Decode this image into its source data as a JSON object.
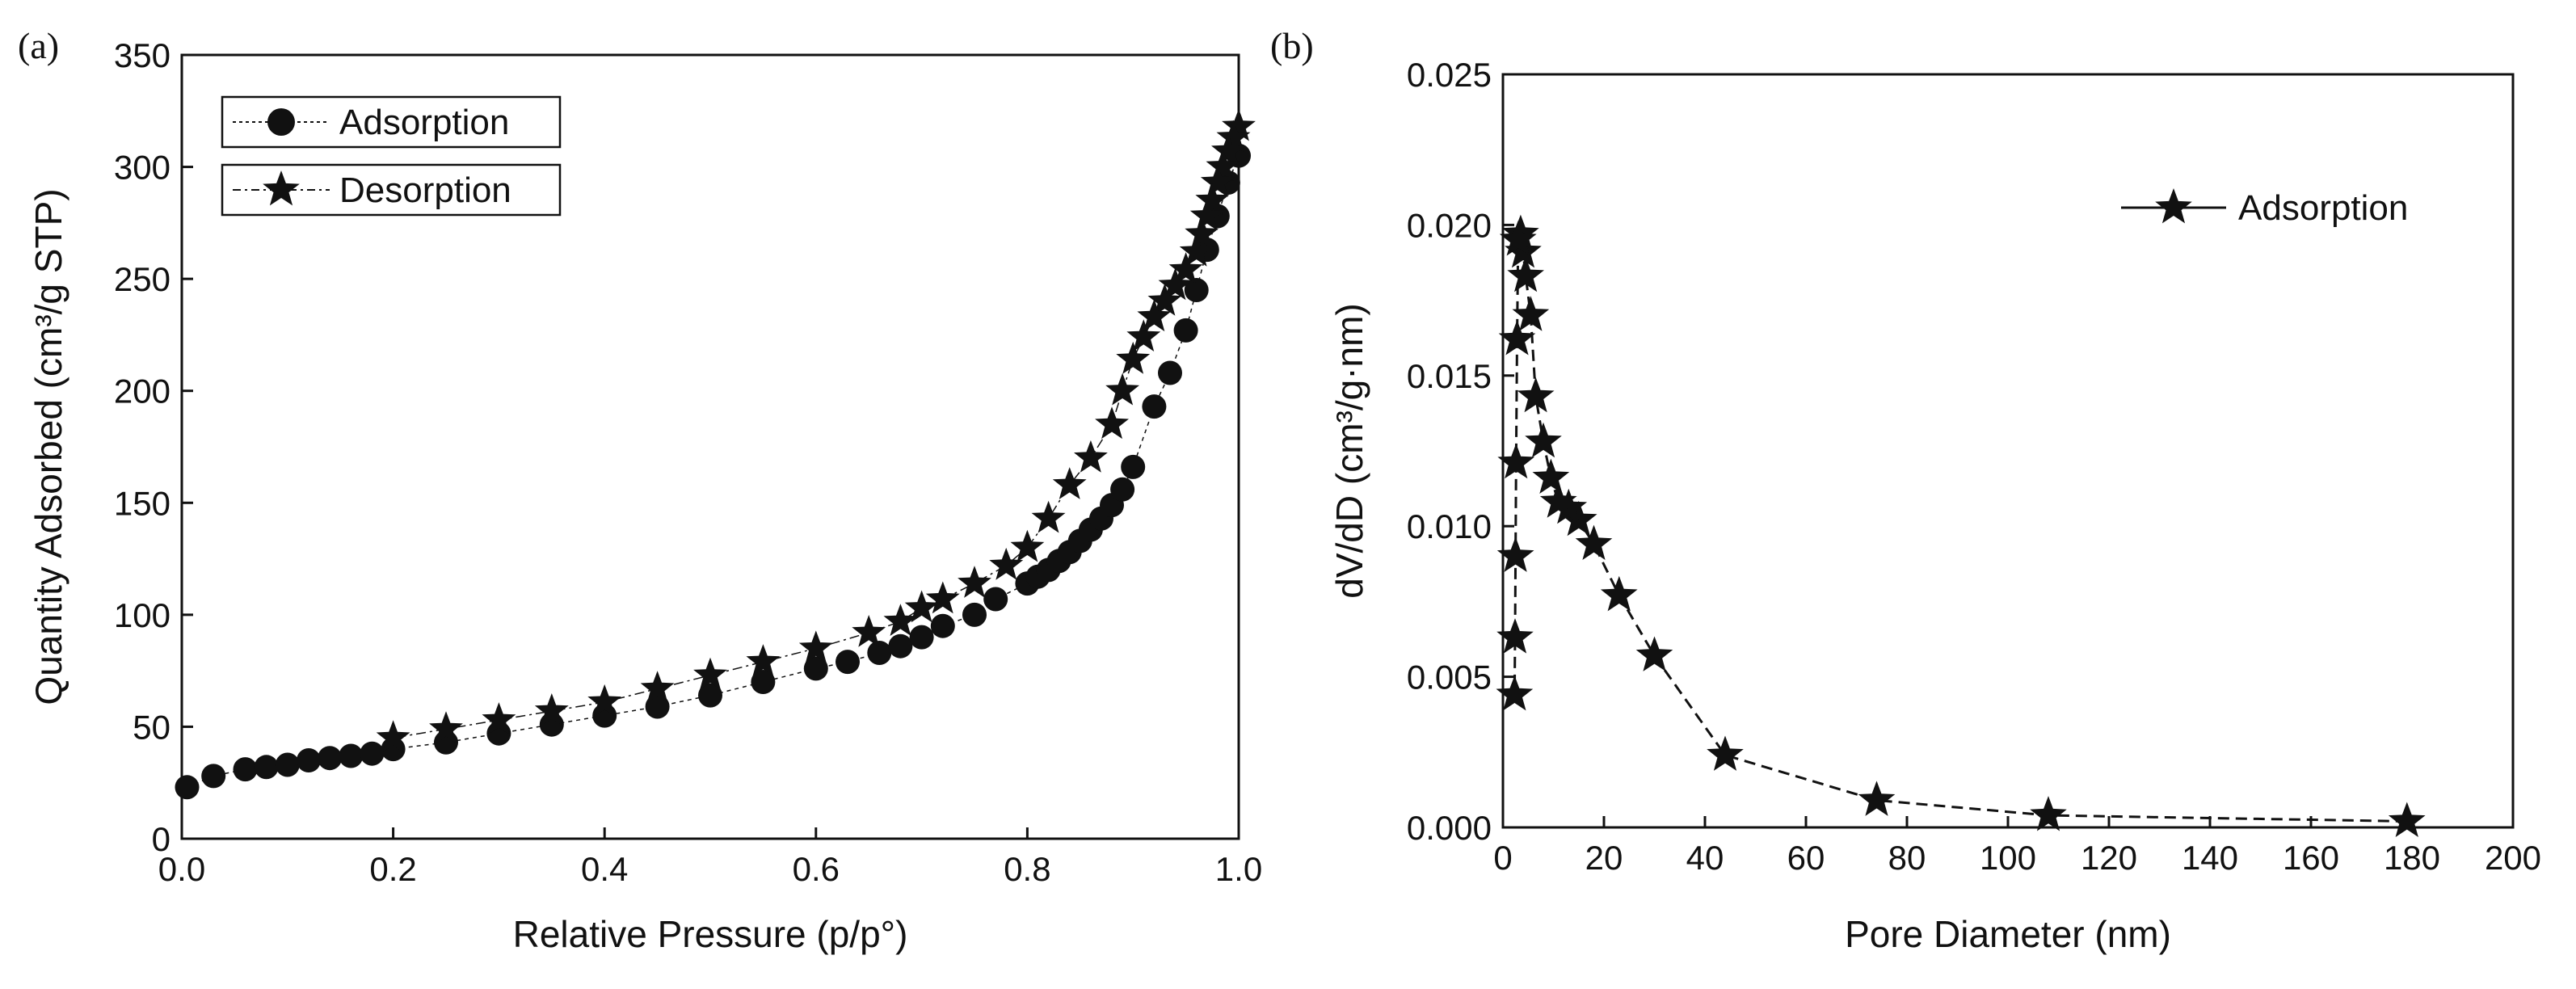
{
  "chart_data": [
    {
      "type": "scatter",
      "panel_label": "(a)",
      "xlabel": "Relative Pressure (p/p°)",
      "ylabel": "Quantity Adsorbed (cm³/g STP)",
      "xlim": [
        0.0,
        1.0
      ],
      "ylim": [
        0,
        350
      ],
      "xticks": [
        "0.0",
        "0.2",
        "0.4",
        "0.6",
        "0.8",
        "1.0"
      ],
      "yticks": [
        "0",
        "50",
        "100",
        "150",
        "200",
        "250",
        "300",
        "350"
      ],
      "legend_position": "top-left",
      "series": [
        {
          "name": "Adsorption",
          "marker": "circle",
          "x": [
            0.005,
            0.03,
            0.06,
            0.08,
            0.1,
            0.12,
            0.14,
            0.16,
            0.18,
            0.2,
            0.25,
            0.3,
            0.35,
            0.4,
            0.45,
            0.5,
            0.55,
            0.6,
            0.63,
            0.66,
            0.68,
            0.7,
            0.72,
            0.75,
            0.77,
            0.8,
            0.81,
            0.82,
            0.83,
            0.84,
            0.85,
            0.86,
            0.87,
            0.88,
            0.89,
            0.9,
            0.92,
            0.935,
            0.95,
            0.96,
            0.97,
            0.98,
            0.99,
            1.0
          ],
          "y": [
            23,
            28,
            31,
            32,
            33,
            35,
            36,
            37,
            38,
            40,
            43,
            47,
            51,
            55,
            59,
            64,
            70,
            76,
            79,
            83,
            86,
            90,
            95,
            100,
            107,
            114,
            117,
            120,
            124,
            128,
            133,
            138,
            143,
            149,
            156,
            166,
            193,
            208,
            227,
            245,
            263,
            278,
            293,
            305
          ]
        },
        {
          "name": "Desorption",
          "marker": "star",
          "x": [
            1.0,
            0.995,
            0.99,
            0.985,
            0.98,
            0.975,
            0.97,
            0.965,
            0.96,
            0.95,
            0.94,
            0.93,
            0.92,
            0.91,
            0.9,
            0.89,
            0.88,
            0.86,
            0.84,
            0.82,
            0.8,
            0.78,
            0.75,
            0.72,
            0.7,
            0.68,
            0.65,
            0.6,
            0.55,
            0.5,
            0.45,
            0.4,
            0.35,
            0.3,
            0.25,
            0.2
          ],
          "y": [
            318,
            313,
            307,
            300,
            293,
            285,
            278,
            270,
            262,
            254,
            247,
            240,
            233,
            224,
            214,
            200,
            185,
            170,
            158,
            143,
            130,
            122,
            114,
            107,
            103,
            97,
            92,
            85,
            79,
            73,
            67,
            61,
            57,
            53,
            49,
            45
          ]
        }
      ]
    },
    {
      "type": "line",
      "panel_label": "(b)",
      "xlabel": "Pore Diameter (nm)",
      "ylabel": "dV/dD (cm³/g·nm)",
      "xlim": [
        0,
        200
      ],
      "ylim": [
        0.0,
        0.025
      ],
      "xticks": [
        "0",
        "20",
        "40",
        "60",
        "80",
        "100",
        "120",
        "140",
        "160",
        "180",
        "200"
      ],
      "yticks": [
        "0.000",
        "0.005",
        "0.010",
        "0.015",
        "0.020",
        "0.025"
      ],
      "legend_position": "top-right",
      "series": [
        {
          "name": "Adsorption",
          "marker": "star",
          "x": [
            179,
            108,
            74,
            44,
            30,
            23,
            18,
            15,
            13,
            11,
            9.5,
            8,
            6.5,
            5.5,
            4.5,
            4,
            3.5,
            3,
            2.8,
            2.6,
            2.5,
            2.4,
            2.3
          ],
          "y": [
            0.0002,
            0.0004,
            0.0009,
            0.0024,
            0.0057,
            0.0077,
            0.0094,
            0.0102,
            0.0106,
            0.0108,
            0.0116,
            0.0128,
            0.0143,
            0.017,
            0.0183,
            0.0191,
            0.0197,
            0.0195,
            0.0162,
            0.0121,
            0.009,
            0.0063,
            0.0044
          ]
        }
      ]
    }
  ]
}
